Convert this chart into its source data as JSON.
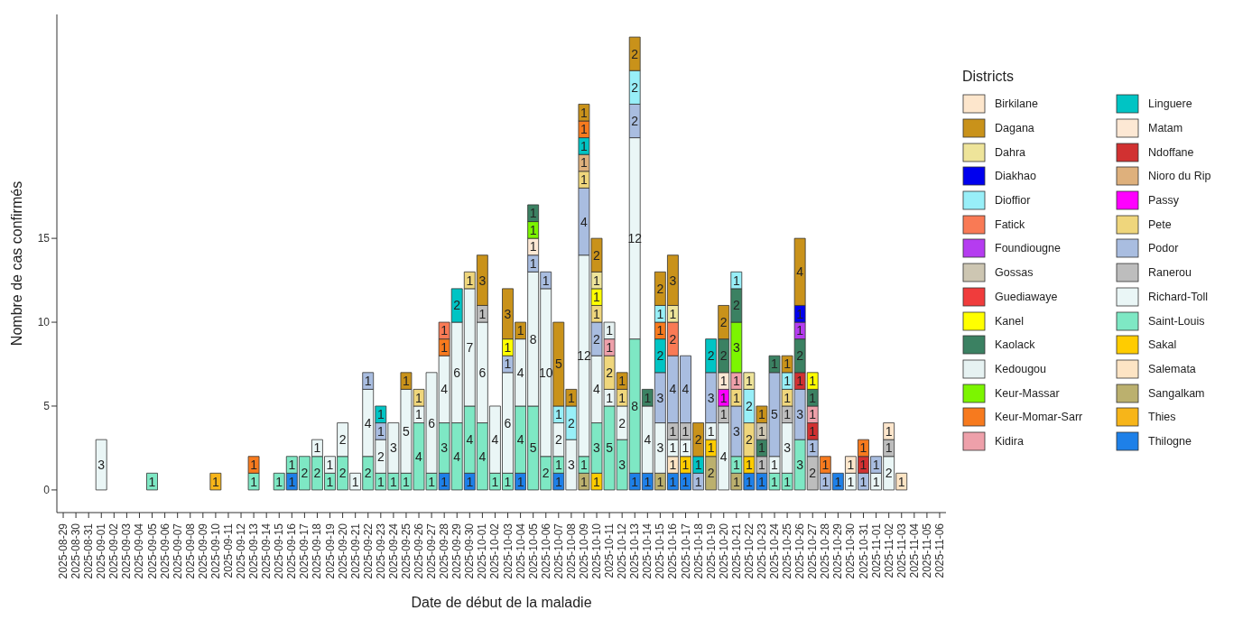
{
  "chart_data": {
    "type": "bar",
    "stacked": true,
    "xlabel": "Date de début de la maladie",
    "ylabel": "Nombre de cas confirmés",
    "legend_title": "Districts",
    "legend": "right",
    "data_labels": true,
    "ylim": [
      -1.35,
      28.35
    ],
    "yticks": [
      0,
      5,
      10,
      15
    ],
    "categories": [
      "2025-08-29",
      "2025-08-30",
      "2025-08-31",
      "2025-09-01",
      "2025-09-02",
      "2025-09-03",
      "2025-09-04",
      "2025-09-05",
      "2025-09-06",
      "2025-09-07",
      "2025-09-08",
      "2025-09-09",
      "2025-09-10",
      "2025-09-11",
      "2025-09-12",
      "2025-09-13",
      "2025-09-14",
      "2025-09-15",
      "2025-09-16",
      "2025-09-17",
      "2025-09-18",
      "2025-09-19",
      "2025-09-20",
      "2025-09-21",
      "2025-09-22",
      "2025-09-23",
      "2025-09-24",
      "2025-09-25",
      "2025-09-26",
      "2025-09-27",
      "2025-09-28",
      "2025-09-29",
      "2025-09-30",
      "2025-10-01",
      "2025-10-02",
      "2025-10-03",
      "2025-10-04",
      "2025-10-05",
      "2025-10-06",
      "2025-10-07",
      "2025-10-08",
      "2025-10-09",
      "2025-10-10",
      "2025-10-11",
      "2025-10-12",
      "2025-10-13",
      "2025-10-14",
      "2025-10-15",
      "2025-10-16",
      "2025-10-17",
      "2025-10-18",
      "2025-10-19",
      "2025-10-20",
      "2025-10-21",
      "2025-10-22",
      "2025-10-23",
      "2025-10-24",
      "2025-10-25",
      "2025-10-26",
      "2025-10-27",
      "2025-10-28",
      "2025-10-29",
      "2025-10-30",
      "2025-10-31",
      "2025-11-01",
      "2025-11-02",
      "2025-11-03",
      "2025-11-04",
      "2025-11-05",
      "2025-11-06"
    ],
    "series": [
      {
        "name": "Thilogne",
        "color": "#1e80e8",
        "values": [
          null,
          null,
          null,
          null,
          null,
          null,
          null,
          null,
          null,
          null,
          null,
          null,
          null,
          null,
          null,
          null,
          null,
          null,
          1,
          null,
          null,
          null,
          null,
          null,
          null,
          null,
          null,
          null,
          null,
          null,
          1,
          null,
          1,
          null,
          null,
          null,
          1,
          null,
          null,
          1,
          null,
          null,
          null,
          null,
          null,
          1,
          1,
          null,
          1,
          1,
          null,
          null,
          null,
          null,
          1,
          1,
          null,
          null,
          null,
          null,
          null,
          1,
          null,
          null,
          null,
          null,
          null,
          null,
          null,
          null
        ]
      },
      {
        "name": "Thies",
        "color": "#f7b519",
        "values": [
          null,
          null,
          null,
          null,
          null,
          null,
          null,
          null,
          null,
          null,
          null,
          null,
          1,
          null,
          null,
          null,
          null,
          null,
          null,
          null,
          null,
          null,
          null,
          null,
          null,
          null,
          null,
          null,
          null,
          null,
          null,
          null,
          null,
          null,
          null,
          null,
          null,
          null,
          null,
          null,
          null,
          null,
          null,
          null,
          null,
          null,
          null,
          null,
          null,
          null,
          null,
          null,
          null,
          null,
          null,
          null,
          null,
          null,
          null,
          null,
          null,
          null,
          null,
          null,
          null,
          null,
          null,
          null,
          null,
          null
        ]
      },
      {
        "name": "Sangalkam",
        "color": "#bbb06e",
        "values": [
          null,
          null,
          null,
          null,
          null,
          null,
          null,
          null,
          null,
          null,
          null,
          null,
          null,
          null,
          null,
          null,
          null,
          null,
          null,
          null,
          null,
          null,
          null,
          null,
          null,
          null,
          null,
          null,
          null,
          null,
          null,
          null,
          null,
          null,
          null,
          null,
          null,
          null,
          null,
          null,
          null,
          1,
          null,
          null,
          null,
          null,
          null,
          1,
          null,
          null,
          null,
          2,
          null,
          1,
          null,
          null,
          null,
          null,
          null,
          null,
          null,
          null,
          null,
          null,
          null,
          null,
          null,
          null,
          null,
          null
        ]
      },
      {
        "name": "Salemata",
        "color": "#fde4c4",
        "values": [
          null,
          null,
          null,
          null,
          null,
          null,
          null,
          null,
          null,
          null,
          null,
          null,
          null,
          null,
          null,
          null,
          null,
          null,
          null,
          null,
          null,
          null,
          null,
          null,
          null,
          null,
          null,
          null,
          null,
          null,
          null,
          null,
          null,
          null,
          null,
          null,
          null,
          null,
          null,
          null,
          null,
          null,
          null,
          null,
          null,
          null,
          null,
          null,
          1,
          null,
          null,
          null,
          null,
          null,
          null,
          null,
          null,
          null,
          null,
          null,
          null,
          null,
          null,
          null,
          null,
          null,
          1,
          null,
          null,
          null
        ]
      },
      {
        "name": "Sakal",
        "color": "#ffcc00",
        "values": [
          null,
          null,
          null,
          null,
          null,
          null,
          null,
          null,
          null,
          null,
          null,
          null,
          null,
          null,
          null,
          null,
          null,
          null,
          null,
          null,
          null,
          null,
          null,
          null,
          null,
          null,
          null,
          null,
          null,
          null,
          null,
          null,
          null,
          null,
          null,
          null,
          null,
          null,
          null,
          null,
          null,
          null,
          1,
          null,
          null,
          null,
          null,
          null,
          null,
          1,
          null,
          1,
          null,
          null,
          1,
          null,
          null,
          null,
          null,
          null,
          null,
          null,
          null,
          null,
          null,
          null,
          null,
          null,
          null,
          null
        ]
      },
      {
        "name": "Saint-Louis",
        "color": "#7ee8c4",
        "values": [
          null,
          null,
          null,
          null,
          null,
          null,
          null,
          1,
          null,
          null,
          null,
          null,
          null,
          null,
          null,
          1,
          null,
          1,
          1,
          2,
          2,
          1,
          2,
          null,
          2,
          1,
          1,
          1,
          4,
          1,
          3,
          4,
          4,
          4,
          1,
          1,
          4,
          5,
          2,
          1,
          null,
          1,
          3,
          5,
          3,
          8,
          null,
          null,
          null,
          null,
          null,
          null,
          null,
          1,
          null,
          null,
          1,
          1,
          3,
          null,
          null,
          null,
          null,
          null,
          null,
          null,
          null,
          null,
          null,
          null
        ]
      },
      {
        "name": "Richard-Toll",
        "color": "#eaf6f6",
        "values": [
          null,
          null,
          null,
          3,
          null,
          null,
          null,
          null,
          null,
          null,
          null,
          null,
          null,
          null,
          null,
          null,
          null,
          null,
          null,
          null,
          1,
          1,
          2,
          1,
          4,
          2,
          3,
          5,
          1,
          6,
          4,
          6,
          7,
          6,
          4,
          6,
          4,
          8,
          10,
          2,
          3,
          12,
          4,
          1,
          2,
          12,
          4,
          3,
          1,
          1,
          null,
          1,
          4,
          null,
          null,
          null,
          1,
          3,
          null,
          null,
          null,
          null,
          1,
          null,
          1,
          2,
          null,
          null,
          null,
          null
        ]
      },
      {
        "name": "Ranerou",
        "color": "#bdbdbd",
        "values": [
          null,
          null,
          null,
          null,
          null,
          null,
          null,
          null,
          null,
          null,
          null,
          null,
          null,
          null,
          null,
          null,
          null,
          null,
          null,
          null,
          null,
          null,
          null,
          null,
          null,
          null,
          null,
          null,
          null,
          null,
          null,
          null,
          null,
          1,
          null,
          null,
          null,
          null,
          null,
          null,
          null,
          null,
          null,
          null,
          null,
          null,
          null,
          null,
          1,
          1,
          null,
          null,
          1,
          null,
          null,
          1,
          null,
          1,
          null,
          2,
          null,
          null,
          null,
          null,
          null,
          1,
          null,
          null,
          null,
          null
        ]
      },
      {
        "name": "Podor",
        "color": "#a9bde0",
        "values": [
          null,
          null,
          null,
          null,
          null,
          null,
          null,
          null,
          null,
          null,
          null,
          null,
          null,
          null,
          null,
          null,
          null,
          null,
          null,
          null,
          null,
          null,
          null,
          null,
          1,
          1,
          null,
          null,
          null,
          null,
          null,
          null,
          null,
          null,
          null,
          1,
          null,
          1,
          1,
          null,
          null,
          4,
          2,
          null,
          null,
          2,
          null,
          3,
          4,
          4,
          1,
          3,
          null,
          3,
          null,
          null,
          5,
          null,
          3,
          1,
          1,
          null,
          null,
          1,
          1,
          null,
          null,
          null,
          null,
          null
        ]
      },
      {
        "name": "Pete",
        "color": "#efd67c",
        "values": [
          null,
          null,
          null,
          null,
          null,
          null,
          null,
          null,
          null,
          null,
          null,
          null,
          null,
          null,
          null,
          null,
          null,
          null,
          null,
          null,
          null,
          null,
          null,
          null,
          null,
          null,
          null,
          null,
          1,
          null,
          null,
          null,
          1,
          null,
          null,
          null,
          null,
          null,
          null,
          null,
          null,
          1,
          1,
          2,
          1,
          null,
          null,
          null,
          null,
          null,
          null,
          null,
          null,
          1,
          2,
          null,
          null,
          1,
          null,
          null,
          null,
          null,
          null,
          null,
          null,
          null,
          null,
          null,
          null,
          null
        ]
      },
      {
        "name": "Passy",
        "color": "#ff00ff",
        "values": [
          null,
          null,
          null,
          null,
          null,
          null,
          null,
          null,
          null,
          null,
          null,
          null,
          null,
          null,
          null,
          null,
          null,
          null,
          null,
          null,
          null,
          null,
          null,
          null,
          null,
          null,
          null,
          null,
          null,
          null,
          null,
          null,
          null,
          null,
          null,
          null,
          null,
          null,
          null,
          null,
          null,
          null,
          null,
          null,
          null,
          null,
          null,
          null,
          null,
          null,
          null,
          null,
          1,
          null,
          null,
          null,
          null,
          null,
          null,
          null,
          null,
          null,
          null,
          null,
          null,
          null,
          null,
          null,
          null,
          null
        ]
      },
      {
        "name": "Nioro du Rip",
        "color": "#deb07c",
        "values": [
          null,
          null,
          null,
          null,
          null,
          null,
          null,
          null,
          null,
          null,
          null,
          null,
          null,
          null,
          null,
          null,
          null,
          null,
          null,
          null,
          null,
          null,
          null,
          null,
          null,
          null,
          null,
          null,
          null,
          null,
          null,
          null,
          null,
          null,
          null,
          null,
          null,
          null,
          null,
          null,
          null,
          1,
          null,
          null,
          null,
          null,
          null,
          null,
          null,
          null,
          null,
          null,
          null,
          null,
          null,
          null,
          null,
          null,
          null,
          null,
          null,
          null,
          null,
          null,
          null,
          null,
          null,
          null,
          null,
          null
        ]
      },
      {
        "name": "Ndoffane",
        "color": "#d13131",
        "values": [
          null,
          null,
          null,
          null,
          null,
          null,
          null,
          null,
          null,
          null,
          null,
          null,
          null,
          null,
          null,
          null,
          null,
          null,
          null,
          null,
          null,
          null,
          null,
          null,
          null,
          null,
          null,
          null,
          null,
          null,
          null,
          null,
          null,
          null,
          null,
          null,
          null,
          null,
          null,
          null,
          null,
          null,
          null,
          null,
          null,
          null,
          null,
          null,
          null,
          null,
          null,
          null,
          null,
          null,
          null,
          null,
          null,
          null,
          1,
          1,
          null,
          null,
          null,
          1,
          null,
          null,
          null,
          null,
          null,
          null
        ]
      },
      {
        "name": "Matam",
        "color": "#fde8d4",
        "values": [
          null,
          null,
          null,
          null,
          null,
          null,
          null,
          null,
          null,
          null,
          null,
          null,
          null,
          null,
          null,
          null,
          null,
          null,
          null,
          null,
          null,
          null,
          null,
          null,
          null,
          null,
          null,
          null,
          null,
          null,
          null,
          null,
          null,
          null,
          null,
          null,
          null,
          1,
          null,
          null,
          null,
          null,
          null,
          null,
          null,
          null,
          null,
          null,
          null,
          null,
          null,
          null,
          1,
          null,
          null,
          null,
          null,
          null,
          null,
          null,
          null,
          null,
          null,
          null,
          null,
          null,
          null,
          null,
          null,
          null
        ]
      },
      {
        "name": "Linguere",
        "color": "#00c4c4",
        "values": [
          null,
          null,
          null,
          null,
          null,
          null,
          null,
          null,
          null,
          null,
          null,
          null,
          null,
          null,
          null,
          null,
          null,
          null,
          null,
          null,
          null,
          null,
          null,
          null,
          null,
          1,
          null,
          null,
          null,
          null,
          null,
          2,
          null,
          null,
          null,
          null,
          null,
          null,
          null,
          null,
          null,
          1,
          null,
          null,
          null,
          null,
          null,
          2,
          null,
          null,
          1,
          2,
          null,
          null,
          null,
          null,
          null,
          null,
          null,
          null,
          null,
          null,
          null,
          null,
          null,
          null,
          null,
          null,
          null,
          null
        ]
      },
      {
        "name": "Kidira",
        "color": "#eea0aa",
        "values": [
          null,
          null,
          null,
          null,
          null,
          null,
          null,
          null,
          null,
          null,
          null,
          null,
          null,
          null,
          null,
          null,
          null,
          null,
          null,
          null,
          null,
          null,
          null,
          null,
          null,
          null,
          null,
          null,
          null,
          null,
          null,
          null,
          null,
          null,
          null,
          null,
          null,
          null,
          null,
          null,
          null,
          null,
          null,
          1,
          null,
          null,
          null,
          null,
          null,
          null,
          null,
          null,
          null,
          1,
          null,
          null,
          null,
          null,
          null,
          1,
          null,
          null,
          null,
          null,
          null,
          null,
          null,
          null,
          null,
          null
        ]
      },
      {
        "name": "Keur-Momar-Sarr",
        "color": "#f77a1e",
        "values": [
          null,
          null,
          null,
          null,
          null,
          null,
          null,
          null,
          null,
          null,
          null,
          null,
          null,
          null,
          null,
          1,
          null,
          null,
          null,
          null,
          null,
          null,
          null,
          null,
          null,
          null,
          null,
          null,
          null,
          null,
          1,
          null,
          null,
          null,
          null,
          null,
          null,
          null,
          null,
          null,
          null,
          1,
          null,
          null,
          null,
          null,
          null,
          1,
          null,
          null,
          null,
          null,
          null,
          null,
          null,
          null,
          null,
          null,
          null,
          null,
          1,
          null,
          null,
          1,
          null,
          null,
          null,
          null,
          null,
          null
        ]
      },
      {
        "name": "Keur-Massar",
        "color": "#7cf500",
        "values": [
          null,
          null,
          null,
          null,
          null,
          null,
          null,
          null,
          null,
          null,
          null,
          null,
          null,
          null,
          null,
          null,
          null,
          null,
          null,
          null,
          null,
          null,
          null,
          null,
          null,
          null,
          null,
          null,
          null,
          null,
          null,
          null,
          null,
          null,
          null,
          null,
          null,
          1,
          null,
          null,
          null,
          null,
          null,
          null,
          null,
          null,
          null,
          null,
          null,
          null,
          null,
          null,
          null,
          3,
          null,
          null,
          null,
          null,
          null,
          null,
          null,
          null,
          null,
          null,
          null,
          null,
          null,
          null,
          null,
          null
        ]
      },
      {
        "name": "Kedougou",
        "color": "#e6f2f2",
        "values": [
          null,
          null,
          null,
          null,
          null,
          null,
          null,
          null,
          null,
          null,
          null,
          null,
          null,
          null,
          null,
          null,
          null,
          null,
          null,
          null,
          null,
          null,
          null,
          null,
          null,
          null,
          null,
          null,
          null,
          null,
          null,
          null,
          null,
          null,
          null,
          null,
          null,
          null,
          null,
          null,
          null,
          null,
          null,
          1,
          null,
          null,
          null,
          null,
          null,
          null,
          null,
          null,
          null,
          null,
          null,
          null,
          null,
          null,
          null,
          null,
          null,
          null,
          null,
          null,
          null,
          null,
          null,
          null,
          null,
          null
        ]
      },
      {
        "name": "Kaolack",
        "color": "#3b8162",
        "values": [
          null,
          null,
          null,
          null,
          null,
          null,
          null,
          null,
          null,
          null,
          null,
          null,
          null,
          null,
          null,
          null,
          null,
          null,
          null,
          null,
          null,
          null,
          null,
          null,
          null,
          null,
          null,
          null,
          null,
          null,
          null,
          null,
          null,
          null,
          null,
          null,
          null,
          1,
          null,
          null,
          null,
          null,
          null,
          null,
          null,
          null,
          1,
          null,
          null,
          null,
          null,
          null,
          2,
          2,
          null,
          1,
          1,
          null,
          2,
          1,
          null,
          null,
          null,
          null,
          null,
          null,
          null,
          null,
          null,
          null
        ]
      },
      {
        "name": "Kanel",
        "color": "#ffff00",
        "values": [
          null,
          null,
          null,
          null,
          null,
          null,
          null,
          null,
          null,
          null,
          null,
          null,
          null,
          null,
          null,
          null,
          null,
          null,
          null,
          null,
          null,
          null,
          null,
          null,
          null,
          null,
          null,
          null,
          null,
          null,
          null,
          null,
          null,
          null,
          null,
          1,
          null,
          null,
          null,
          null,
          null,
          null,
          1,
          null,
          null,
          null,
          null,
          null,
          null,
          null,
          null,
          null,
          null,
          null,
          null,
          null,
          null,
          null,
          null,
          1,
          null,
          null,
          null,
          null,
          null,
          null,
          null,
          null,
          null,
          null
        ]
      },
      {
        "name": "Guediawaye",
        "color": "#f03c3c",
        "values": [
          null,
          null,
          null,
          null,
          null,
          null,
          null,
          null,
          null,
          null,
          null,
          null,
          null,
          null,
          null,
          null,
          null,
          null,
          null,
          null,
          null,
          null,
          null,
          null,
          null,
          null,
          null,
          null,
          null,
          null,
          null,
          null,
          null,
          null,
          null,
          null,
          null,
          null,
          null,
          null,
          null,
          null,
          null,
          null,
          null,
          null,
          null,
          null,
          null,
          null,
          null,
          null,
          null,
          null,
          null,
          null,
          null,
          null,
          null,
          null,
          null,
          null,
          null,
          null,
          null,
          null,
          null,
          null,
          null,
          null
        ]
      },
      {
        "name": "Gossas",
        "color": "#cdc6b2",
        "values": [
          null,
          null,
          null,
          null,
          null,
          null,
          null,
          null,
          null,
          null,
          null,
          null,
          null,
          null,
          null,
          null,
          null,
          null,
          null,
          null,
          null,
          null,
          null,
          null,
          null,
          null,
          null,
          null,
          null,
          null,
          null,
          null,
          null,
          null,
          null,
          null,
          null,
          null,
          null,
          null,
          null,
          null,
          null,
          null,
          null,
          null,
          null,
          null,
          null,
          null,
          null,
          null,
          null,
          null,
          null,
          1,
          null,
          null,
          null,
          null,
          null,
          null,
          null,
          null,
          null,
          null,
          null,
          null,
          null,
          null
        ]
      },
      {
        "name": "Foundiougne",
        "color": "#b53cf0",
        "values": [
          null,
          null,
          null,
          null,
          null,
          null,
          null,
          null,
          null,
          null,
          null,
          null,
          null,
          null,
          null,
          null,
          null,
          null,
          null,
          null,
          null,
          null,
          null,
          null,
          null,
          null,
          null,
          null,
          null,
          null,
          null,
          null,
          null,
          null,
          null,
          null,
          null,
          null,
          null,
          null,
          null,
          null,
          null,
          null,
          null,
          null,
          null,
          null,
          null,
          null,
          null,
          null,
          null,
          null,
          null,
          null,
          null,
          null,
          1,
          null,
          null,
          null,
          null,
          null,
          null,
          null,
          null,
          null,
          null,
          null
        ]
      },
      {
        "name": "Fatick",
        "color": "#f97a55",
        "values": [
          null,
          null,
          null,
          null,
          null,
          null,
          null,
          null,
          null,
          null,
          null,
          null,
          null,
          null,
          null,
          null,
          null,
          null,
          null,
          null,
          null,
          null,
          null,
          null,
          null,
          null,
          null,
          null,
          null,
          null,
          1,
          null,
          null,
          null,
          null,
          null,
          null,
          null,
          null,
          null,
          null,
          null,
          null,
          null,
          null,
          null,
          null,
          null,
          2,
          null,
          null,
          null,
          null,
          null,
          null,
          null,
          null,
          null,
          null,
          null,
          null,
          null,
          null,
          null,
          null,
          null,
          null,
          null,
          null,
          null
        ]
      },
      {
        "name": "Dioffior",
        "color": "#98eff8",
        "values": [
          null,
          null,
          null,
          null,
          null,
          null,
          null,
          null,
          null,
          null,
          null,
          null,
          null,
          null,
          null,
          null,
          null,
          null,
          null,
          null,
          null,
          null,
          null,
          null,
          null,
          null,
          null,
          null,
          null,
          null,
          null,
          null,
          null,
          null,
          null,
          null,
          null,
          null,
          null,
          1,
          2,
          null,
          null,
          null,
          null,
          2,
          null,
          1,
          null,
          null,
          null,
          null,
          null,
          1,
          2,
          null,
          null,
          1,
          null,
          null,
          null,
          null,
          null,
          null,
          null,
          null,
          null,
          null,
          null,
          null
        ]
      },
      {
        "name": "Diakhao",
        "color": "#0000ee",
        "values": [
          null,
          null,
          null,
          null,
          null,
          null,
          null,
          null,
          null,
          null,
          null,
          null,
          null,
          null,
          null,
          null,
          null,
          null,
          null,
          null,
          null,
          null,
          null,
          null,
          null,
          null,
          null,
          null,
          null,
          null,
          null,
          null,
          null,
          null,
          null,
          null,
          null,
          null,
          null,
          null,
          null,
          null,
          null,
          null,
          null,
          null,
          null,
          null,
          null,
          null,
          null,
          null,
          null,
          null,
          null,
          null,
          null,
          null,
          1,
          null,
          null,
          null,
          null,
          null,
          null,
          null,
          null,
          null,
          null,
          null
        ]
      },
      {
        "name": "Dahra",
        "color": "#eee49a",
        "values": [
          null,
          null,
          null,
          null,
          null,
          null,
          null,
          null,
          null,
          null,
          null,
          null,
          null,
          null,
          null,
          null,
          null,
          null,
          null,
          null,
          null,
          null,
          null,
          null,
          null,
          null,
          null,
          null,
          null,
          null,
          null,
          null,
          null,
          null,
          null,
          null,
          null,
          null,
          null,
          null,
          null,
          null,
          1,
          null,
          null,
          null,
          null,
          null,
          1,
          null,
          null,
          null,
          null,
          null,
          1,
          null,
          null,
          null,
          null,
          null,
          null,
          null,
          null,
          null,
          null,
          null,
          null,
          null,
          null,
          null
        ]
      },
      {
        "name": "Dagana",
        "color": "#c9921a",
        "values": [
          null,
          null,
          null,
          null,
          null,
          null,
          null,
          null,
          null,
          null,
          null,
          null,
          null,
          null,
          null,
          null,
          null,
          null,
          null,
          null,
          null,
          null,
          null,
          null,
          null,
          null,
          null,
          1,
          null,
          null,
          null,
          null,
          null,
          3,
          null,
          3,
          1,
          null,
          null,
          5,
          1,
          1,
          2,
          null,
          1,
          2,
          null,
          2,
          3,
          null,
          2,
          null,
          2,
          null,
          null,
          1,
          null,
          1,
          4,
          null,
          null,
          null,
          null,
          null,
          null,
          null,
          null,
          null,
          null,
          null
        ]
      },
      {
        "name": "Birkilane",
        "color": "#fde6cc",
        "values": [
          null,
          null,
          null,
          null,
          null,
          null,
          null,
          null,
          null,
          null,
          null,
          null,
          null,
          null,
          null,
          null,
          null,
          null,
          null,
          null,
          null,
          null,
          null,
          null,
          null,
          null,
          null,
          null,
          null,
          null,
          null,
          null,
          null,
          null,
          null,
          null,
          null,
          null,
          null,
          null,
          null,
          null,
          null,
          null,
          null,
          null,
          null,
          null,
          null,
          null,
          null,
          null,
          null,
          null,
          null,
          null,
          null,
          null,
          null,
          null,
          null,
          null,
          1,
          null,
          null,
          1,
          null,
          null,
          null,
          null
        ]
      }
    ]
  }
}
